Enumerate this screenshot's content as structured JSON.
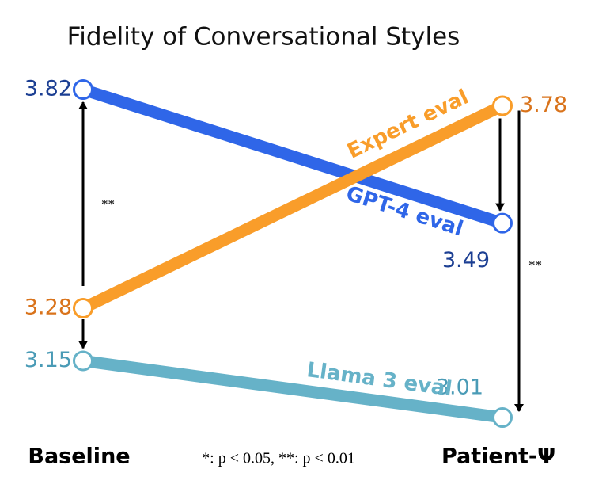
{
  "chart_data": {
    "type": "slope",
    "title": "Fidelity of Conversational Styles",
    "categories": [
      "Baseline",
      "Patient-Ψ"
    ],
    "series": [
      {
        "name": "GPT-4 eval",
        "color": "#2f66e8",
        "label_color": "#1c3f93",
        "values": [
          3.82,
          3.49
        ]
      },
      {
        "name": "Expert eval",
        "color": "#f99d2a",
        "label_color": "#d9731b",
        "values": [
          3.28,
          3.78
        ]
      },
      {
        "name": "Llama 3 eval",
        "color": "#66b2c8",
        "label_color": "#4a9bb6",
        "values": [
          3.15,
          3.01
        ]
      }
    ],
    "significance": [
      "**",
      "**"
    ],
    "footnote": "*: p < 0.05, **: p < 0.01"
  }
}
